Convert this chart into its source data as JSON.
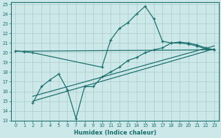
{
  "xlabel": "Humidex (Indice chaleur)",
  "bg_color": "#cce8e8",
  "line_color": "#1a6e6e",
  "grid_color": "#aacccc",
  "xlim": [
    -0.5,
    23.5
  ],
  "ylim": [
    13,
    25.2
  ],
  "xticks": [
    0,
    1,
    2,
    3,
    4,
    5,
    6,
    7,
    8,
    9,
    10,
    11,
    12,
    13,
    14,
    15,
    16,
    17,
    18,
    19,
    20,
    21,
    22,
    23
  ],
  "yticks": [
    13,
    14,
    15,
    16,
    17,
    18,
    19,
    20,
    21,
    22,
    23,
    24,
    25
  ],
  "line1_x": [
    0,
    1,
    2,
    10,
    11,
    12,
    13,
    14,
    15,
    16,
    17,
    18,
    19,
    20,
    21,
    22,
    23
  ],
  "line1_y": [
    20.2,
    20.1,
    20.0,
    18.5,
    21.3,
    22.5,
    23.1,
    24.0,
    24.8,
    23.5,
    21.2,
    21.0,
    21.0,
    20.9,
    20.7,
    20.4,
    20.3
  ],
  "line2_x": [
    0,
    23
  ],
  "line2_y": [
    20.15,
    20.3
  ],
  "line3_x": [
    2,
    3,
    4,
    5,
    6,
    7,
    8,
    9,
    10,
    11,
    12,
    13,
    14,
    15,
    16,
    17,
    18,
    19,
    20,
    21,
    22,
    23
  ],
  "line3_y": [
    14.8,
    16.5,
    17.2,
    17.8,
    16.2,
    13.2,
    16.5,
    16.5,
    17.5,
    18.0,
    18.5,
    19.2,
    19.5,
    20.0,
    20.3,
    20.5,
    21.0,
    21.1,
    21.0,
    20.8,
    20.5,
    20.3
  ],
  "line4_x": [
    2,
    23
  ],
  "line4_y": [
    15.0,
    20.4
  ],
  "line5_x": [
    2,
    23
  ],
  "line5_y": [
    15.5,
    20.7
  ]
}
